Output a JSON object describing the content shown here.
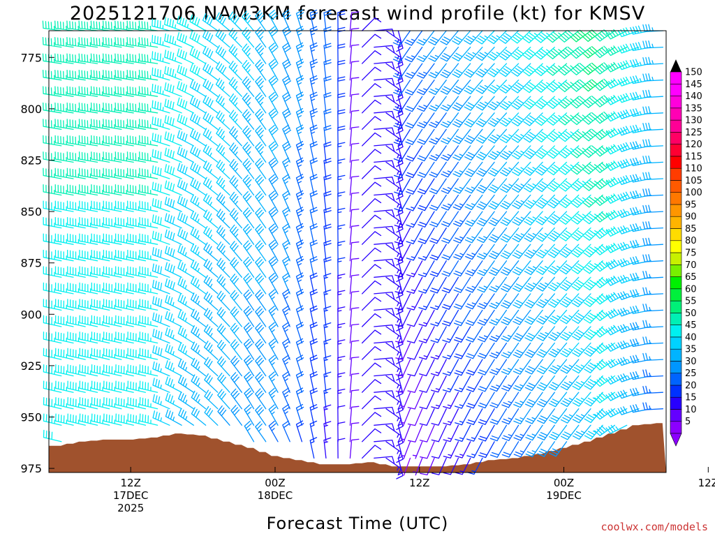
{
  "chart_data": {
    "type": "wind-barb-profile",
    "title": "2025121706 NAM3KM forecast wind profile (kt) for KMSV",
    "xlabel": "Forecast Time (UTC)",
    "ylabel": "",
    "credit": "coolwx.com/models",
    "y_scale": "pressure (reversed)",
    "ylim": [
      977,
      762
    ],
    "y_ticks": [
      775,
      800,
      825,
      850,
      875,
      900,
      925,
      950,
      975
    ],
    "x_range_hours": [
      -0.8,
      50.5
    ],
    "x_ticks": [
      {
        "hour": 6,
        "lines": [
          "12Z",
          "17DEC",
          "2025"
        ]
      },
      {
        "hour": 18,
        "lines": [
          "00Z",
          "18DEC"
        ]
      },
      {
        "hour": 30,
        "lines": [
          "12Z"
        ]
      },
      {
        "hour": 42,
        "lines": [
          "00Z",
          "19DEC"
        ]
      },
      {
        "hour": 54,
        "lines": [
          "12Z"
        ]
      }
    ],
    "colorbar": {
      "unit": "kt",
      "levels": [
        5,
        10,
        15,
        20,
        25,
        30,
        35,
        40,
        45,
        50,
        55,
        60,
        65,
        70,
        75,
        80,
        85,
        90,
        95,
        100,
        105,
        110,
        115,
        120,
        125,
        130,
        135,
        140,
        145,
        150
      ],
      "colors": [
        "#8c00ff",
        "#6400ff",
        "#2800ff",
        "#0032ff",
        "#0064ff",
        "#0096ff",
        "#00b4ff",
        "#00d2ff",
        "#00f0f0",
        "#00f0b4",
        "#00f078",
        "#00f03c",
        "#00f000",
        "#78f000",
        "#c8f000",
        "#ffff00",
        "#ffdc00",
        "#ffb400",
        "#ff9600",
        "#ff7800",
        "#ff5a00",
        "#ff3c00",
        "#ff0000",
        "#ff0032",
        "#ff0064",
        "#ff0096",
        "#ff00b4",
        "#ff00dc",
        "#ff00ff",
        "#ff00ff"
      ]
    },
    "terrain": {
      "color": "#a0522d",
      "surface_pressure_hours": [
        0,
        2,
        4,
        6,
        8,
        10,
        12,
        14,
        16,
        18,
        20,
        22,
        24,
        26,
        28,
        30,
        32,
        34,
        36,
        38,
        40,
        42,
        44,
        46,
        48,
        50
      ],
      "surface_pressure": [
        964,
        962,
        961,
        961,
        960,
        958,
        959,
        962,
        965,
        969,
        971,
        973,
        973,
        972,
        974,
        974,
        974,
        973,
        971,
        970,
        968,
        965,
        962,
        958,
        954,
        953
      ]
    },
    "wind_summary": [
      {
        "period": "17DEC 06Z-15Z",
        "levels": "775-925",
        "direction": "W to WNW",
        "speed_kt": "40-50"
      },
      {
        "period": "17DEC 18Z-18DEC 06Z",
        "levels": "775-925",
        "direction": "NW backing to N",
        "speed_kt": "25-45"
      },
      {
        "period": "18DEC 06Z-12Z",
        "levels": "all",
        "direction": "variable",
        "speed_kt": "5-15"
      },
      {
        "period": "18DEC 12Z-19DEC 06Z",
        "levels": "775-900",
        "direction": "SW",
        "speed_kt": "35-60"
      },
      {
        "period": "19DEC 06Z-12Z",
        "levels": "850-950",
        "direction": "W",
        "speed_kt": "25-35"
      }
    ]
  }
}
